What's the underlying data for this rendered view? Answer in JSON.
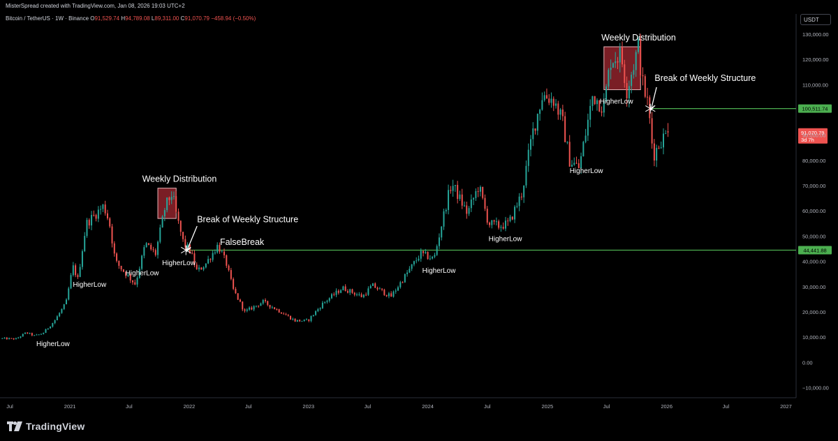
{
  "header": {
    "attribution": "MisterSpread created with TradingView.com, Jan 08, 2026 19:03 UTC+2",
    "symbol": "Bitcoin / TetherUS · 1W · Binance",
    "ohlc": {
      "open_label": "O",
      "open": "91,529.74",
      "high_label": "H",
      "high": "94,789.08",
      "low_label": "L",
      "low": "89,311.00",
      "close_label": "C",
      "close": "91,070.79",
      "change": "−458.94 (−0.50%)"
    },
    "currency": "USDT"
  },
  "footer": {
    "brand": "TradingView"
  },
  "colors": {
    "up": "#26a69a",
    "down": "#ef5350",
    "level": "#4caf50",
    "background": "#000000",
    "zone": "#a32832"
  },
  "chart_data": {
    "type": "candlestick",
    "timeframe": "1W",
    "x_range": [
      "2020-06-01",
      "2027-02-01"
    ],
    "ylim": [
      -14000,
      138000
    ],
    "y_ticks": [
      {
        "value": 130000,
        "label": "130,000.00"
      },
      {
        "value": 120000,
        "label": "120,000.00"
      },
      {
        "value": 110000,
        "label": "110,000.00"
      },
      {
        "value": 90000,
        "label": "90,000.00"
      },
      {
        "value": 80000,
        "label": "80,000.00"
      },
      {
        "value": 70000,
        "label": "70,000.00"
      },
      {
        "value": 60000,
        "label": "60,000.00"
      },
      {
        "value": 50000,
        "label": "50,000.00"
      },
      {
        "value": 40000,
        "label": "40,000.00"
      },
      {
        "value": 30000,
        "label": "30,000.00"
      },
      {
        "value": 20000,
        "label": "20,000.00"
      },
      {
        "value": 10000,
        "label": "10,000.00"
      },
      {
        "value": 0,
        "label": "0.00"
      },
      {
        "value": -10000,
        "label": "−10,000.00"
      }
    ],
    "x_ticks": [
      {
        "date": "2020-07-01",
        "label": "Jul"
      },
      {
        "date": "2021-01-01",
        "label": "2021"
      },
      {
        "date": "2021-07-01",
        "label": "Jul"
      },
      {
        "date": "2022-01-01",
        "label": "2022"
      },
      {
        "date": "2022-07-01",
        "label": "Jul"
      },
      {
        "date": "2023-01-01",
        "label": "2023"
      },
      {
        "date": "2023-07-01",
        "label": "Jul"
      },
      {
        "date": "2024-01-01",
        "label": "2024"
      },
      {
        "date": "2024-07-01",
        "label": "Jul"
      },
      {
        "date": "2025-01-01",
        "label": "2025"
      },
      {
        "date": "2025-07-01",
        "label": "Jul"
      },
      {
        "date": "2026-01-01",
        "label": "2026"
      },
      {
        "date": "2026-07-01",
        "label": "Jul"
      },
      {
        "date": "2027-01-01",
        "label": "2027"
      }
    ],
    "price_path": [
      [
        "2020-06-01",
        9500
      ],
      [
        "2020-07-20",
        9300
      ],
      [
        "2020-08-20",
        11800
      ],
      [
        "2020-09-15",
        10500
      ],
      [
        "2020-10-10",
        11500
      ],
      [
        "2020-11-15",
        16500
      ],
      [
        "2020-12-20",
        23500
      ],
      [
        "2021-01-10",
        38000
      ],
      [
        "2021-01-25",
        33000
      ],
      [
        "2021-02-20",
        55000
      ],
      [
        "2021-03-15",
        58000
      ],
      [
        "2021-04-14",
        62000
      ],
      [
        "2021-05-01",
        56000
      ],
      [
        "2021-05-20",
        40000
      ],
      [
        "2021-06-15",
        36000
      ],
      [
        "2021-07-20",
        31000
      ],
      [
        "2021-08-20",
        47000
      ],
      [
        "2021-09-20",
        43000
      ],
      [
        "2021-10-20",
        62000
      ],
      [
        "2021-11-10",
        67000
      ],
      [
        "2021-11-25",
        57000
      ],
      [
        "2021-12-15",
        47000
      ],
      [
        "2022-01-05",
        44000
      ],
      [
        "2022-01-25",
        36000
      ],
      [
        "2022-02-20",
        39000
      ],
      [
        "2022-03-30",
        46500
      ],
      [
        "2022-04-25",
        39000
      ],
      [
        "2022-05-15",
        29000
      ],
      [
        "2022-06-20",
        20000
      ],
      [
        "2022-08-15",
        24000
      ],
      [
        "2022-10-15",
        19500
      ],
      [
        "2022-11-20",
        16500
      ],
      [
        "2022-12-30",
        16500
      ],
      [
        "2023-02-15",
        23500
      ],
      [
        "2023-04-15",
        29500
      ],
      [
        "2023-06-15",
        26000
      ],
      [
        "2023-07-15",
        30500
      ],
      [
        "2023-09-10",
        26000
      ],
      [
        "2023-10-25",
        34500
      ],
      [
        "2023-12-10",
        43000
      ],
      [
        "2024-01-20",
        41000
      ],
      [
        "2024-02-25",
        62000
      ],
      [
        "2024-03-14",
        71000
      ],
      [
        "2024-05-01",
        59000
      ],
      [
        "2024-06-05",
        70000
      ],
      [
        "2024-07-05",
        55000
      ],
      [
        "2024-08-05",
        54000
      ],
      [
        "2024-09-05",
        55000
      ],
      [
        "2024-10-15",
        67000
      ],
      [
        "2024-11-15",
        90000
      ],
      [
        "2024-12-17",
        106000
      ],
      [
        "2025-01-20",
        104000
      ],
      [
        "2025-02-15",
        96000
      ],
      [
        "2025-03-10",
        80000
      ],
      [
        "2025-04-08",
        77000
      ],
      [
        "2025-05-20",
        106000
      ],
      [
        "2025-06-22",
        101000
      ],
      [
        "2025-07-14",
        120000
      ],
      [
        "2025-08-14",
        122000
      ],
      [
        "2025-09-01",
        108000
      ],
      [
        "2025-10-06",
        125000
      ],
      [
        "2025-10-20",
        110000
      ],
      [
        "2025-11-05",
        102000
      ],
      [
        "2025-11-21",
        82000
      ],
      [
        "2025-12-15",
        88000
      ],
      [
        "2026-01-05",
        91000
      ]
    ],
    "last": {
      "date": "2026-01-05",
      "open": 91529.74,
      "high": 94789.08,
      "low": 89311.0,
      "close": 91070.79
    },
    "horizontal_levels": [
      {
        "from": "2021-12-20",
        "value": 44441.88,
        "label": "44,441.88"
      },
      {
        "from": "2025-11-15",
        "value": 100511.74,
        "label": "100,511.74"
      }
    ],
    "last_price_label": {
      "value": 91070.79,
      "label": "91,070.79",
      "countdown": "3d 7h"
    },
    "annotations": [
      {
        "type": "zone",
        "x0": "2021-09-27",
        "x1": "2021-11-22",
        "y0": 57000,
        "y1": 69000
      },
      {
        "type": "zone",
        "x0": "2025-06-23",
        "x1": "2025-10-13",
        "y0": 108000,
        "y1": 125000
      },
      {
        "type": "text",
        "text": "Weekly Distribution",
        "x": "2021-08-10",
        "y": 71500
      },
      {
        "type": "text",
        "text": "Weekly Distribution",
        "x": "2025-06-15",
        "y": 127500
      },
      {
        "type": "text",
        "text": "Break of Weekly Structure",
        "x": "2022-01-25",
        "y": 55500
      },
      {
        "type": "text",
        "text": "Break of Weekly Structure",
        "x": "2025-11-25",
        "y": 111500
      },
      {
        "type": "text",
        "text": "FalseBreak",
        "x": "2022-04-05",
        "y": 46500
      },
      {
        "type": "text",
        "text": "HigherLow",
        "x": "2020-09-20",
        "y": 6500
      },
      {
        "type": "text",
        "text": "HigherLow",
        "x": "2021-01-10",
        "y": 30000
      },
      {
        "type": "text",
        "text": "HigherLow",
        "x": "2021-06-20",
        "y": 34500
      },
      {
        "type": "text",
        "text": "HigherLow",
        "x": "2021-10-10",
        "y": 38500
      },
      {
        "type": "text",
        "text": "HigherLow",
        "x": "2023-12-15",
        "y": 35500
      },
      {
        "type": "text",
        "text": "HigherLow",
        "x": "2024-07-05",
        "y": 48000
      },
      {
        "type": "text",
        "text": "HigherLow",
        "x": "2025-03-10",
        "y": 75000
      },
      {
        "type": "text",
        "text": "HigherLow",
        "x": "2025-06-10",
        "y": 102500
      },
      {
        "type": "arrow",
        "from": [
          "2022-01-25",
          54000
        ],
        "to": [
          "2021-12-24",
          44000
        ]
      },
      {
        "type": "arrow",
        "from": [
          "2025-12-01",
          109000
        ],
        "to": [
          "2025-11-14",
          100000
        ]
      },
      {
        "type": "cross",
        "x": "2021-12-22",
        "y": 44441.88
      },
      {
        "type": "cross",
        "x": "2025-11-12",
        "y": 100511.74
      }
    ]
  }
}
